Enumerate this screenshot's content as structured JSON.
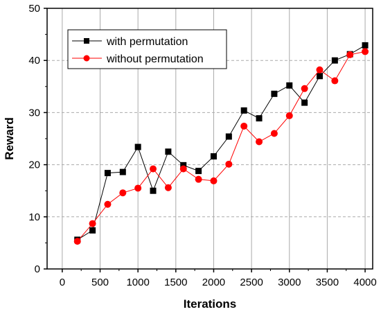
{
  "chart_data": {
    "type": "line",
    "title": "",
    "xlabel": "Iterations",
    "ylabel": "Reward",
    "xlim": [
      -200,
      4100
    ],
    "ylim": [
      0,
      50
    ],
    "xticks": [
      0,
      500,
      1000,
      1500,
      2000,
      2500,
      3000,
      3500,
      4000
    ],
    "yticks": [
      0,
      10,
      20,
      30,
      40,
      50
    ],
    "grid": "vertical solid, horizontal dashed",
    "legend_position": "top-left",
    "x": [
      200,
      400,
      600,
      800,
      1000,
      1200,
      1400,
      1600,
      1800,
      2000,
      2200,
      2400,
      2600,
      2800,
      3000,
      3200,
      3400,
      3600,
      3800,
      4000
    ],
    "series": [
      {
        "name": "with permutation",
        "color": "#000000",
        "marker": "square",
        "values": [
          5.6,
          7.4,
          18.4,
          18.6,
          23.4,
          15.0,
          22.5,
          19.9,
          18.8,
          21.6,
          25.4,
          30.4,
          28.9,
          33.6,
          35.2,
          31.9,
          37.0,
          40.0,
          41.2,
          42.9
        ]
      },
      {
        "name": "without permutation",
        "color": "#ff0000",
        "marker": "circle",
        "values": [
          5.3,
          8.7,
          12.4,
          14.6,
          15.5,
          19.2,
          15.6,
          19.2,
          17.2,
          16.9,
          20.1,
          27.4,
          24.4,
          26.0,
          29.4,
          34.6,
          38.2,
          36.1,
          41.1,
          41.7
        ]
      }
    ]
  }
}
